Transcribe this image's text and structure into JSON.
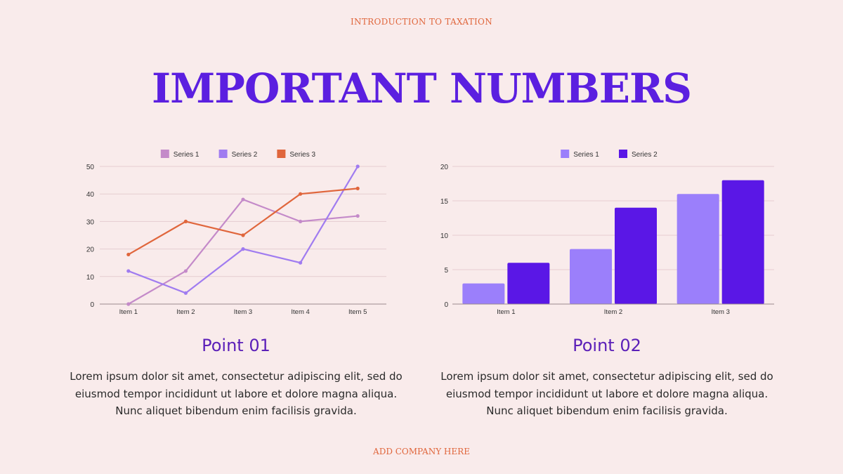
{
  "slide": {
    "top_label": "INTRODUCTION TO TAXATION",
    "title": "IMPORTANT NUMBERS",
    "footer": "ADD COMPANY HERE"
  },
  "points": [
    {
      "title": "Point 01",
      "text": "Lorem ipsum dolor sit amet, consectetur adipiscing elit, sed do eiusmod tempor incididunt ut labore et dolore magna aliqua. Nunc aliquet bibendum enim facilisis gravida."
    },
    {
      "title": "Point 02",
      "text": "Lorem ipsum dolor sit amet, consectetur adipiscing elit, sed do eiusmod tempor incididunt ut labore et dolore magna aliqua. Nunc aliquet bibendum enim facilisis gravida."
    }
  ],
  "chart_data": [
    {
      "type": "line",
      "categories": [
        "Item 1",
        "Item 2",
        "Item 3",
        "Item 4",
        "Item 5"
      ],
      "series": [
        {
          "name": "Series 1",
          "color": "#c48ac9",
          "values": [
            0,
            12,
            38,
            30,
            32
          ]
        },
        {
          "name": "Series 2",
          "color": "#a07cf0",
          "values": [
            12,
            4,
            20,
            15,
            50
          ]
        },
        {
          "name": "Series 3",
          "color": "#e0663c",
          "values": [
            18,
            30,
            25,
            40,
            42
          ]
        }
      ],
      "ylim": [
        0,
        50
      ],
      "yticks": [
        0,
        10,
        20,
        30,
        40,
        50
      ],
      "grid": true,
      "legend": "top"
    },
    {
      "type": "bar",
      "categories": [
        "Item 1",
        "Item 2",
        "Item 3"
      ],
      "series": [
        {
          "name": "Series 1",
          "color": "#9b7ffb",
          "values": [
            3,
            8,
            16
          ]
        },
        {
          "name": "Series 2",
          "color": "#5a17e6",
          "values": [
            6,
            14,
            18
          ]
        }
      ],
      "ylim": [
        0,
        20
      ],
      "yticks": [
        0,
        5,
        10,
        15,
        20
      ],
      "grid": true,
      "legend": "top"
    }
  ]
}
